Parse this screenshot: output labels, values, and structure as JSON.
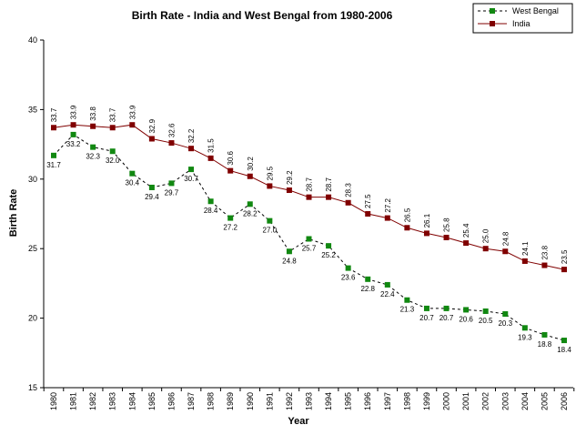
{
  "chart_data": {
    "type": "line",
    "title": "Birth Rate - India and West Bengal from 1980-2006",
    "xlabel": "Year",
    "ylabel": "Birth Rate",
    "ylim": [
      15,
      40
    ],
    "yticks": [
      15,
      20,
      25,
      30,
      35,
      40
    ],
    "grid": false,
    "legend_position": "top-right",
    "categories": [
      "1980",
      "1981",
      "1982",
      "1983",
      "1984",
      "1985",
      "1986",
      "1987",
      "1988",
      "1989",
      "1990",
      "1991",
      "1992",
      "1993",
      "1994",
      "1995",
      "1996",
      "1997",
      "1998",
      "1999",
      "2000",
      "2001",
      "2002",
      "2003",
      "2004",
      "2005",
      "2006"
    ],
    "series": [
      {
        "name": "West Bengal",
        "color": "#118811",
        "line_style": "dashed",
        "marker": "square",
        "label_position": "below",
        "values": [
          31.7,
          33.2,
          32.3,
          32.0,
          30.4,
          29.4,
          29.7,
          30.7,
          28.4,
          27.2,
          28.2,
          27.0,
          24.8,
          25.7,
          25.2,
          23.6,
          22.8,
          22.4,
          21.3,
          20.7,
          20.7,
          20.6,
          20.5,
          20.3,
          19.3,
          18.8,
          18.4
        ],
        "labels": [
          "31.7",
          "33.2",
          "32.3",
          "32.0",
          "30.4",
          "29.4",
          "29.7",
          "30.7",
          "28.4",
          "27.2",
          "28.2",
          "27.0",
          "24.8",
          "25.7",
          "25.2",
          "23.6",
          "22.8",
          "22.4",
          "21.3",
          "20.7",
          "20.7",
          "20.6",
          "20.5",
          "20.3",
          "19.3",
          "18.8",
          "18.4"
        ]
      },
      {
        "name": "India",
        "color": "#800000",
        "line_style": "solid",
        "marker": "square",
        "label_position": "above",
        "values": [
          33.7,
          33.9,
          33.8,
          33.7,
          33.9,
          32.9,
          32.6,
          32.2,
          31.5,
          30.6,
          30.2,
          29.5,
          29.2,
          28.7,
          28.7,
          28.3,
          27.5,
          27.2,
          26.5,
          26.1,
          25.8,
          25.4,
          25.0,
          24.8,
          24.1,
          23.8,
          23.5
        ],
        "labels": [
          "33.7",
          "33.9",
          "33.8",
          "33.7",
          "33.9",
          "32.9",
          "32.6",
          "32.2",
          "31.5",
          "30.6",
          "30.2",
          "29.5",
          "29.2",
          "28.7",
          "28.7",
          "28.3",
          "27.5",
          "27.2",
          "26.5",
          "26.1",
          "25.8",
          "25.4",
          "25.0",
          "24.8",
          "24.1",
          "23.8",
          "23.5"
        ]
      }
    ]
  }
}
